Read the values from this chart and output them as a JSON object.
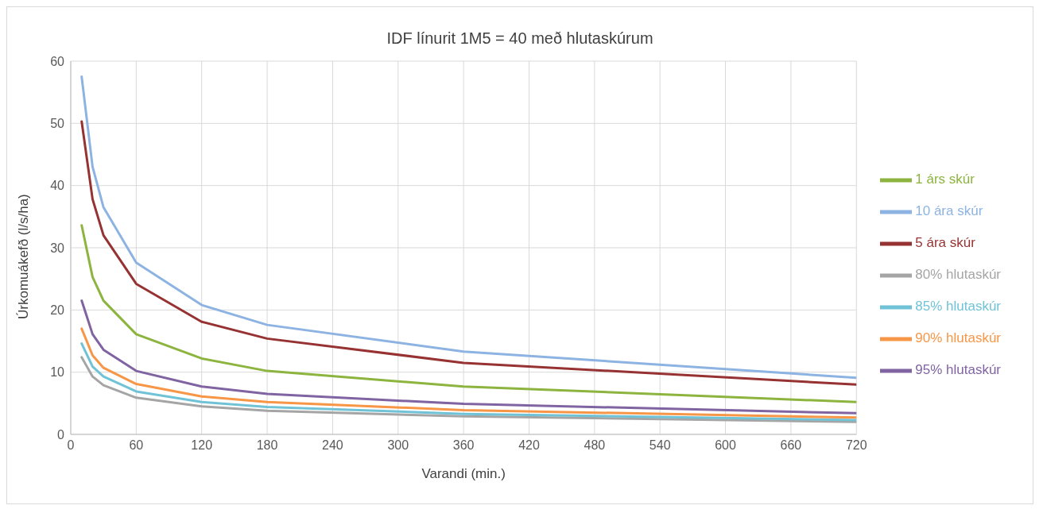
{
  "chart_data": {
    "type": "line",
    "title": "IDF línurit 1M5 = 40 með hlutaskúrum",
    "xlabel": "Varandi (min.)",
    "ylabel": "Úrkomuákefð (l/s/ha)",
    "x": [
      10,
      20,
      30,
      60,
      120,
      180,
      360,
      720
    ],
    "series": [
      {
        "name": "80% hlutaskúr",
        "color": "#a5a5a5",
        "values": [
          12.4,
          9.3,
          7.9,
          5.9,
          4.5,
          3.8,
          2.9,
          2.0
        ]
      },
      {
        "name": "85% hlutaskúr",
        "color": "#70c3d6",
        "values": [
          14.6,
          10.9,
          9.3,
          6.9,
          5.2,
          4.4,
          3.3,
          2.3
        ]
      },
      {
        "name": "90% hlutaskúr",
        "color": "#f79646",
        "values": [
          17.0,
          12.7,
          10.7,
          8.1,
          6.1,
          5.2,
          3.9,
          2.7
        ]
      },
      {
        "name": "95% hlutaskúr",
        "color": "#8064a2",
        "values": [
          21.5,
          16.1,
          13.6,
          10.2,
          7.7,
          6.5,
          4.9,
          3.4
        ]
      },
      {
        "name": "1 árs skúr",
        "color": "#8cb43f",
        "values": [
          33.6,
          25.3,
          21.5,
          16.1,
          12.2,
          10.2,
          7.7,
          5.2
        ]
      },
      {
        "name": "5 ára skúr",
        "color": "#963232",
        "values": [
          50.3,
          37.8,
          32.0,
          24.2,
          18.1,
          15.4,
          11.5,
          8.0
        ]
      },
      {
        "name": "10 ára skúr",
        "color": "#8db3e2",
        "values": [
          57.5,
          43.0,
          36.5,
          27.6,
          20.8,
          17.6,
          13.3,
          9.1
        ]
      }
    ],
    "xlim": [
      0,
      720
    ],
    "xticks": [
      0,
      60,
      120,
      180,
      240,
      300,
      360,
      420,
      480,
      540,
      600,
      660,
      720
    ],
    "ylim": [
      0,
      60
    ],
    "yticks": [
      0,
      10,
      20,
      30,
      40,
      50,
      60
    ],
    "grid": true,
    "legend": "right",
    "marker": "none",
    "line_style": "solid"
  }
}
